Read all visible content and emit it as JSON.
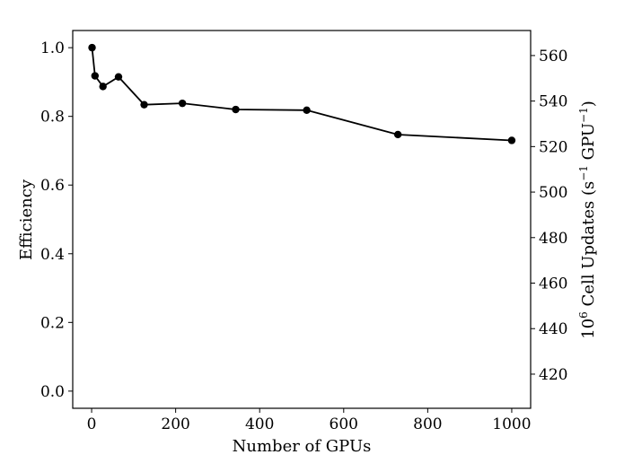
{
  "chart_data": {
    "type": "line",
    "xlabel": "Number of GPUs",
    "ylabel_left": "Efficiency",
    "ylabel_right_parts": [
      "10",
      "6",
      " Cell Updates ",
      "(s",
      "−1",
      " GPU",
      "−1",
      ")"
    ],
    "xlim": [
      -45,
      1045
    ],
    "ylim_left": [
      -0.05,
      1.05
    ],
    "ylim_right": [
      405,
      571
    ],
    "x_ticks": [
      0,
      200,
      400,
      600,
      800,
      1000
    ],
    "y_ticks_left": [
      0.0,
      0.2,
      0.4,
      0.6,
      0.8,
      1.0
    ],
    "y_ticks_right": [
      420,
      440,
      460,
      480,
      500,
      520,
      540,
      560
    ],
    "series": [
      {
        "x": [
          1,
          8,
          27,
          64,
          125,
          216,
          343,
          512,
          729,
          1000
        ],
        "y": [
          1.0,
          0.918,
          0.887,
          0.915,
          0.834,
          0.838,
          0.82,
          0.818,
          0.747,
          0.73
        ]
      }
    ],
    "grid": false,
    "color": "#000000"
  }
}
